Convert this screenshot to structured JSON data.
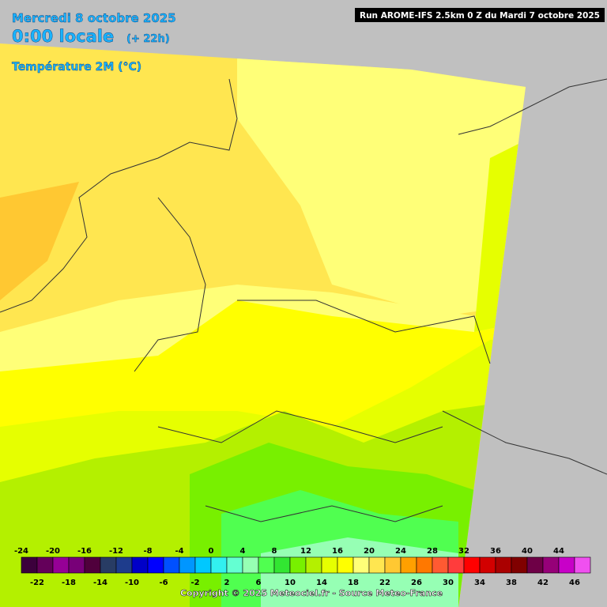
{
  "header": {
    "date": "Mercredi 8 octobre 2025",
    "time": "0:00 locale",
    "lead": "(+ 22h)",
    "parameter": "Température 2M (°C)",
    "run": "Run AROME-IFS 2.5km 0 Z du Mardi 7 octobre 2025"
  },
  "legend": {
    "ticks": [
      -24,
      -22,
      -20,
      -18,
      -16,
      -14,
      -12,
      -10,
      -8,
      -6,
      -4,
      -2,
      0,
      2,
      4,
      6,
      8,
      10,
      12,
      14,
      16,
      18,
      20,
      22,
      24,
      26,
      28,
      30,
      32,
      34,
      36,
      38,
      40,
      42,
      44,
      46
    ],
    "colors": [
      "#3c003c",
      "#64005a",
      "#960096",
      "#780078",
      "#50003c",
      "#283c64",
      "#1e3c8c",
      "#0000c8",
      "#0000ff",
      "#0050ff",
      "#0096ff",
      "#00c8ff",
      "#32f0f0",
      "#64ffd2",
      "#96ffb4",
      "#50ff50",
      "#32e632",
      "#78f000",
      "#b4f000",
      "#e6ff00",
      "#ffff00",
      "#ffff78",
      "#ffe650",
      "#ffc832",
      "#ffa000",
      "#ff7800",
      "#ff5a32",
      "#ff3c3c",
      "#ff0000",
      "#d20000",
      "#aa0000",
      "#800000",
      "#6e0046",
      "#960078",
      "#c800c8",
      "#f050f0"
    ]
  },
  "footer": {
    "copyright": "Copyright © 2025 Meteociel.fr - Source Meteo-France"
  }
}
